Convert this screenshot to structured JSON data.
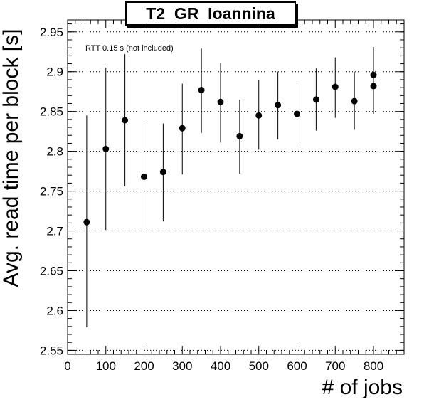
{
  "chart_data": {
    "type": "scatter",
    "title": "T2_GR_Ioannina",
    "annotation": "RTT 0.15 s (not included)",
    "xlabel": "# of jobs",
    "ylabel": "Avg. read time per block [s]",
    "xlim": [
      0,
      880
    ],
    "ylim": [
      2.545,
      2.965
    ],
    "xticks": [
      0,
      100,
      200,
      300,
      400,
      500,
      600,
      700,
      800
    ],
    "yticks": [
      2.55,
      2.6,
      2.65,
      2.7,
      2.75,
      2.8,
      2.85,
      2.9,
      2.95
    ],
    "ytick_labels": [
      "2.55",
      "2.6",
      "2.65",
      "2.7",
      "2.75",
      "2.8",
      "2.85",
      "2.9",
      "2.95"
    ],
    "grid": "horizontal dotted",
    "marker_color": "#000000",
    "points": [
      {
        "x": 50,
        "y": 2.711,
        "err_low": 2.579,
        "err_high": 2.845
      },
      {
        "x": 100,
        "y": 2.803,
        "err_low": 2.701,
        "err_high": 2.905
      },
      {
        "x": 150,
        "y": 2.839,
        "err_low": 2.756,
        "err_high": 2.922
      },
      {
        "x": 200,
        "y": 2.768,
        "err_low": 2.699,
        "err_high": 2.838
      },
      {
        "x": 250,
        "y": 2.774,
        "err_low": 2.712,
        "err_high": 2.835
      },
      {
        "x": 300,
        "y": 2.829,
        "err_low": 2.771,
        "err_high": 2.885
      },
      {
        "x": 350,
        "y": 2.877,
        "err_low": 2.823,
        "err_high": 2.929
      },
      {
        "x": 400,
        "y": 2.862,
        "err_low": 2.811,
        "err_high": 2.911
      },
      {
        "x": 450,
        "y": 2.819,
        "err_low": 2.772,
        "err_high": 2.865
      },
      {
        "x": 500,
        "y": 2.845,
        "err_low": 2.802,
        "err_high": 2.89
      },
      {
        "x": 550,
        "y": 2.858,
        "err_low": 2.815,
        "err_high": 2.9
      },
      {
        "x": 600,
        "y": 2.847,
        "err_low": 2.807,
        "err_high": 2.888
      },
      {
        "x": 650,
        "y": 2.865,
        "err_low": 2.826,
        "err_high": 2.904
      },
      {
        "x": 700,
        "y": 2.881,
        "err_low": 2.842,
        "err_high": 2.918
      },
      {
        "x": 750,
        "y": 2.863,
        "err_low": 2.827,
        "err_high": 2.9
      },
      {
        "x": 800,
        "y": 2.896,
        "err_low": 2.861,
        "err_high": 2.931
      },
      {
        "x": 800,
        "y": 2.882,
        "err_low": 2.847,
        "err_high": 2.918
      }
    ]
  }
}
